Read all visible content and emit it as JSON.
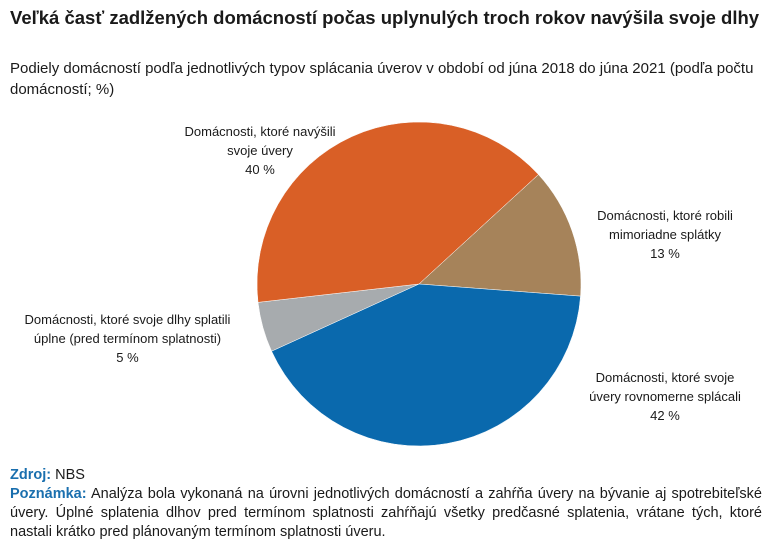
{
  "title": "Veľká časť zadlžených domácností počas uplynulých troch rokov navýšila svoje dlhy",
  "subtitle": "Podiely domácností podľa jednotlivých typov splácania úverov v období od júna 2018 do júna 2021 (podľa počtu domácností; %)",
  "chart_data": {
    "type": "pie",
    "title": "Veľká časť zadlžených domácností počas uplynulých troch rokov navýšila svoje dlhy",
    "slices": [
      {
        "label": "Domácnosti, ktoré robili mimoriadne splátky",
        "value": 13,
        "value_label": "13 %",
        "color": "#a6835a"
      },
      {
        "label": "Domácnosti, ktoré svoje úvery rovnomerne splácali",
        "value": 42,
        "value_label": "42 %",
        "color": "#0a69ad"
      },
      {
        "label": "Domácnosti, ktoré svoje dlhy splatili úplne (pred termínom splatnosti)",
        "value": 5,
        "value_label": "5 %",
        "color": "#a7abae"
      },
      {
        "label": "Domácnosti, ktoré navýšili svoje úvery",
        "value": 40,
        "value_label": "40 %",
        "color": "#d95f26"
      }
    ],
    "start_angle_deg": 47.5
  },
  "footer": {
    "source_key": "Zdroj:",
    "source": "NBS",
    "note_key": "Poznámka:",
    "note": "Analýza bola vykonaná na úrovni jednotlivých domácností a zahŕňa úvery na bývanie aj spotrebiteľské úvery. Úplné splatenia dlhov pred termínom splatnosti zahŕňajú všetky predčasné splatenia, vrátane tých, ktoré nastali krátko pred plánovaným termínom splatnosti úveru."
  }
}
